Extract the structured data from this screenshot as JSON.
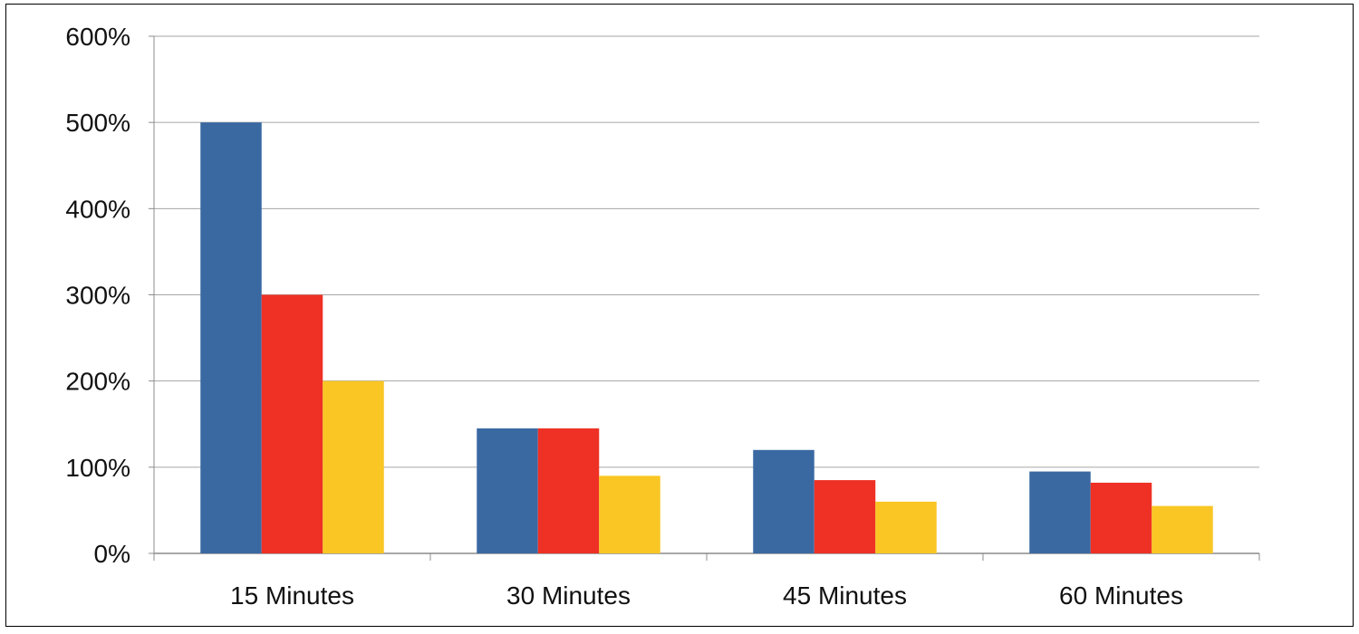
{
  "chart_data": {
    "type": "bar",
    "title": "",
    "xlabel": "",
    "ylabel": "",
    "categories": [
      "15 Minutes",
      "30 Minutes",
      "45 Minutes",
      "60 Minutes"
    ],
    "series": [
      {
        "color": "#3a69a2",
        "values": [
          500,
          145,
          120,
          95
        ]
      },
      {
        "color": "#ee3124",
        "values": [
          300,
          145,
          85,
          82
        ]
      },
      {
        "color": "#f9c623",
        "values": [
          200,
          90,
          60,
          55
        ]
      }
    ],
    "ylim": [
      0,
      600
    ],
    "yticks": [
      0,
      100,
      200,
      300,
      400,
      500,
      600
    ],
    "ytick_labels": [
      "0%",
      "100%",
      "200%",
      "300%",
      "400%",
      "500%",
      "600%"
    ],
    "grid": true,
    "legend": "none"
  }
}
